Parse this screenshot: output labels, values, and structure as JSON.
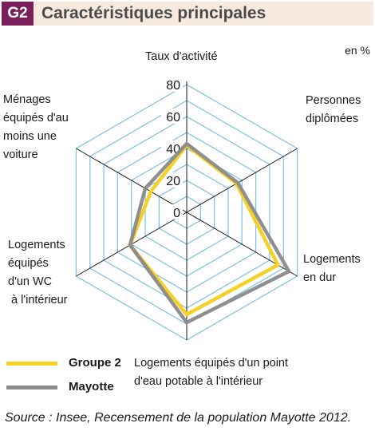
{
  "figure": {
    "badge": "G2",
    "title": "Caractéristiques principales",
    "unit": "en %",
    "source": "Source : Insee, Recensement de la population Mayotte 2012."
  },
  "chart_data": {
    "type": "radar",
    "axes": [
      [
        "Taux d'activité"
      ],
      [
        "Personnes",
        "diplômées"
      ],
      [
        "Logements",
        "en dur"
      ],
      [
        "Logements équipés d'un point",
        "d'eau potable à l'intérieur"
      ],
      [
        "Logements",
        "équipés",
        "d'un WC",
        " à l'intérieur"
      ],
      [
        "Ménages",
        "équipés d'au",
        "moins une",
        "voiture"
      ]
    ],
    "scale": {
      "min": 0,
      "max": 80,
      "step": 10
    },
    "tick_labels": [
      "0",
      "20",
      "40",
      "60",
      "80"
    ],
    "tick_values": [
      0,
      20,
      40,
      60,
      80
    ],
    "series": [
      {
        "name": "Groupe 2",
        "color": "#f5d125",
        "values": [
          42,
          36,
          66,
          64,
          41,
          26
        ]
      },
      {
        "name": "Mayotte",
        "color": "#8a8a8a",
        "values": [
          43,
          37,
          74,
          69,
          41,
          30
        ]
      }
    ],
    "grid_color": "#7fc0e1",
    "spoke_color": "#1a1a1a"
  }
}
